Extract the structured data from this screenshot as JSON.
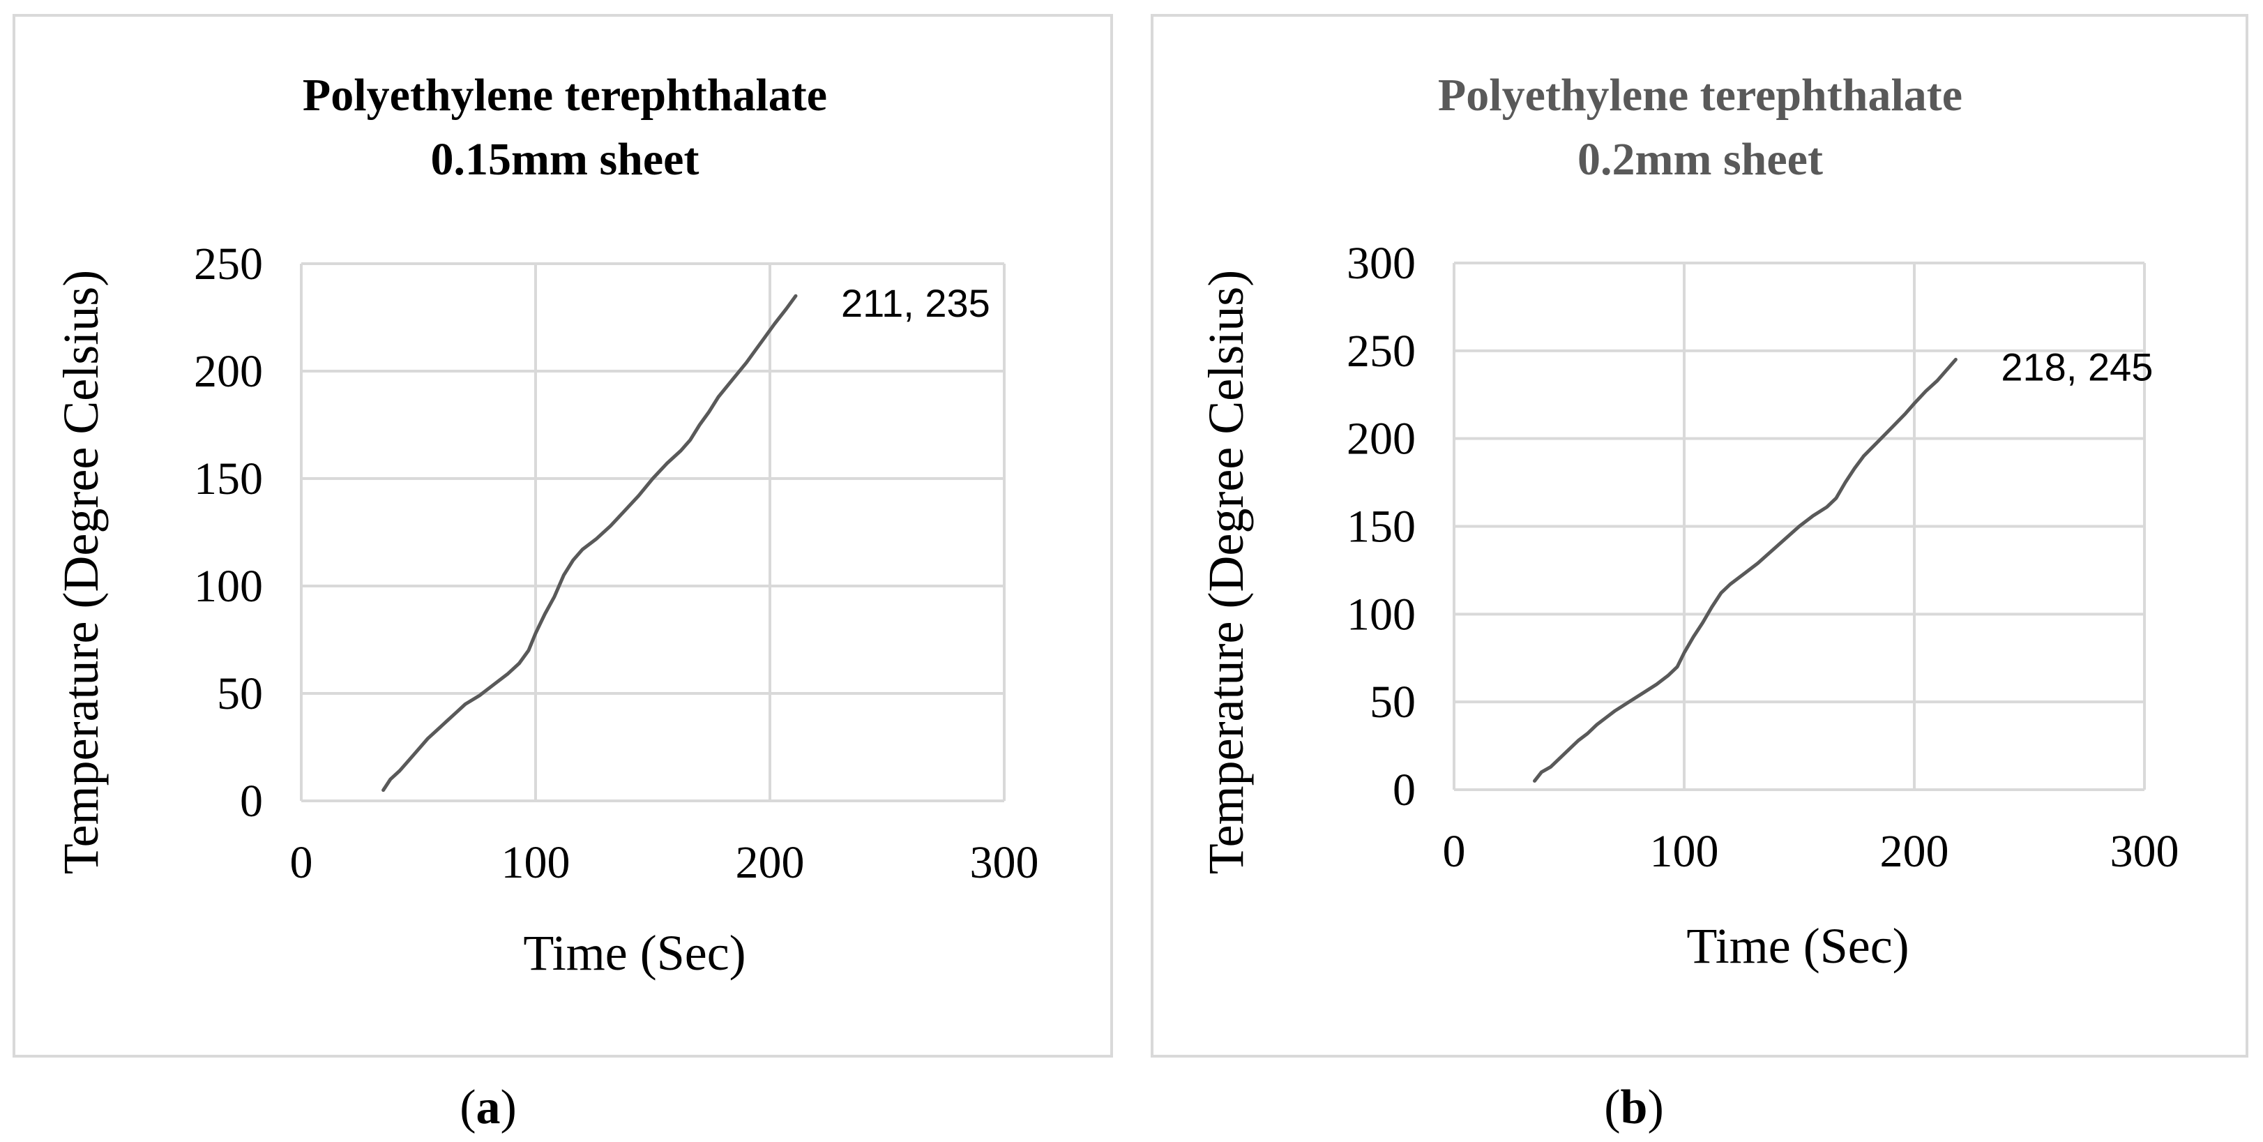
{
  "chart_data": [
    {
      "type": "line",
      "title_lines": [
        "Polyethylene terephthalate",
        "0.15mm sheet"
      ],
      "title_color": "#000000",
      "xlabel": "Time (Sec)",
      "ylabel": "Temperature (Degree Celsius)",
      "xlim": [
        0,
        300
      ],
      "ylim": [
        0,
        250
      ],
      "xticks": [
        0,
        100,
        200,
        300
      ],
      "yticks": [
        0,
        50,
        100,
        150,
        200,
        250
      ],
      "series": [
        {
          "name": "Temperature",
          "color": "#595959",
          "x": [
            35,
            38,
            42,
            46,
            50,
            54,
            58,
            62,
            66,
            70,
            76,
            82,
            88,
            93,
            97,
            100,
            104,
            108,
            112,
            116,
            120,
            126,
            132,
            138,
            144,
            150,
            156,
            162,
            166,
            170,
            174,
            178,
            184,
            190,
            194,
            198,
            202,
            207,
            211
          ],
          "y": [
            5,
            10,
            14,
            19,
            24,
            29,
            33,
            37,
            41,
            45,
            49,
            54,
            59,
            64,
            70,
            78,
            87,
            95,
            105,
            112,
            117,
            122,
            128,
            135,
            142,
            150,
            157,
            163,
            168,
            175,
            181,
            188,
            196,
            204,
            210,
            216,
            222,
            229,
            235
          ]
        }
      ],
      "annotation": {
        "text": "211, 235",
        "x": 211,
        "y": 235
      },
      "caption": {
        "open": "(",
        "letter": "a",
        "close": ")"
      }
    },
    {
      "type": "line",
      "title_lines": [
        "Polyethylene terephthalate",
        "0.2mm sheet"
      ],
      "title_color": "#595959",
      "xlabel": "Time (Sec)",
      "ylabel": "Temperature (Degree Celsius)",
      "xlim": [
        0,
        300
      ],
      "ylim": [
        0,
        300
      ],
      "xticks": [
        0,
        100,
        200,
        300
      ],
      "yticks": [
        0,
        50,
        100,
        150,
        200,
        250,
        300
      ],
      "series": [
        {
          "name": "Temperature",
          "color": "#595959",
          "x": [
            35,
            38,
            42,
            46,
            50,
            54,
            58,
            62,
            66,
            70,
            76,
            82,
            88,
            93,
            97,
            100,
            104,
            108,
            112,
            116,
            120,
            126,
            132,
            138,
            144,
            150,
            156,
            162,
            166,
            170,
            174,
            178,
            184,
            190,
            196,
            200,
            205,
            210,
            214,
            218
          ],
          "y": [
            5,
            10,
            13,
            18,
            23,
            28,
            32,
            37,
            41,
            45,
            50,
            55,
            60,
            65,
            70,
            78,
            87,
            95,
            104,
            112,
            117,
            123,
            129,
            136,
            143,
            150,
            156,
            161,
            166,
            175,
            183,
            190,
            198,
            206,
            214,
            220,
            227,
            233,
            239,
            245
          ]
        }
      ],
      "annotation": {
        "text": "218, 245",
        "x": 218,
        "y": 245
      },
      "caption": {
        "open": "(",
        "letter": "b",
        "close": ")"
      }
    }
  ]
}
